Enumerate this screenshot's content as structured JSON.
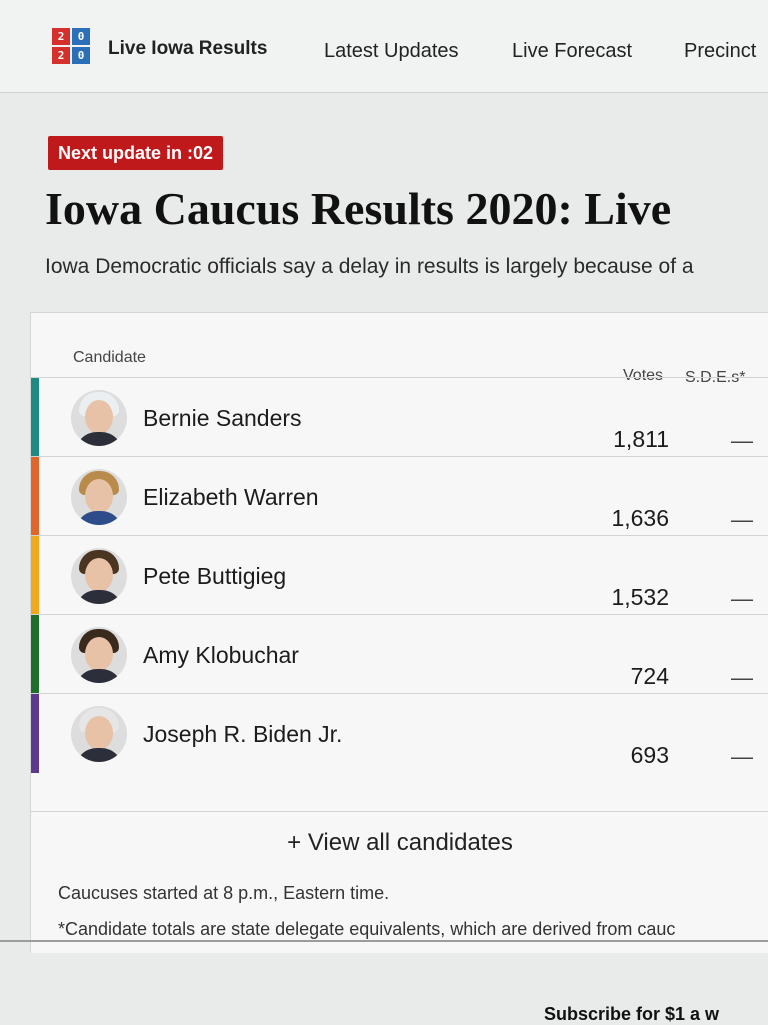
{
  "nav": {
    "logo": [
      "2",
      "0",
      "2",
      "0"
    ],
    "items": [
      "Live Iowa Results",
      "Latest Updates",
      "Live Forecast",
      "Precinct"
    ]
  },
  "badge": "Next update in :02",
  "title": "Iowa Caucus Results 2020: Live",
  "subtitle": "Iowa Democratic officials say a delay in results is largely because of a",
  "table": {
    "headers": {
      "candidate": "Candidate",
      "votes": "Votes",
      "sde": "S.D.E.s*"
    },
    "rows": [
      {
        "name": "Bernie Sanders",
        "votes": "1,811",
        "sde": "—",
        "color": "#1f8a82",
        "hair": "#eceff1",
        "suit": "#2c2f3a"
      },
      {
        "name": "Elizabeth Warren",
        "votes": "1,636",
        "sde": "—",
        "color": "#e0652a",
        "hair": "#b88b4a",
        "suit": "#2e4b8a"
      },
      {
        "name": "Pete Buttigieg",
        "votes": "1,532",
        "sde": "—",
        "color": "#f2a81d",
        "hair": "#4a3422",
        "suit": "#2c2f3a"
      },
      {
        "name": "Amy Klobuchar",
        "votes": "724",
        "sde": "—",
        "color": "#1f6e2b",
        "hair": "#3a2a1d",
        "suit": "#2c2f3a"
      },
      {
        "name": "Joseph R. Biden Jr.",
        "votes": "693",
        "sde": "—",
        "color": "#5b3a8e",
        "hair": "#e6e6e6",
        "suit": "#2c2f3a"
      }
    ],
    "view_all": "+ View all candidates"
  },
  "notes": {
    "started": "Caucuses started at 8 p.m., Eastern time.",
    "footnote": "*Candidate totals are state delegate equivalents, which are derived from cauc"
  },
  "subscribe": "Subscribe for $1 a w"
}
